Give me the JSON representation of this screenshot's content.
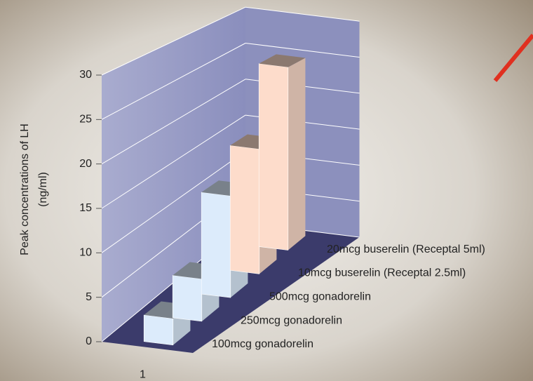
{
  "chart_data": {
    "type": "bar3d",
    "y_label": [
      "Peak concentrations of LH",
      "(ng/ml)"
    ],
    "categories": [
      "1"
    ],
    "series": [
      {
        "name": "100mcg gonadorelin",
        "color": "#dcebfb",
        "values": [
          3
        ]
      },
      {
        "name": "250mcg gonadorelin",
        "color": "#dcebfb",
        "values": [
          5
        ]
      },
      {
        "name": "500mcg gonadorelin",
        "color": "#dcebfb",
        "values": [
          12.5
        ]
      },
      {
        "name": "10mcg buserelin (Receptal 2.5ml)",
        "color": "#fddccb",
        "values": [
          16
        ]
      },
      {
        "name": "20mcg buserelin (Receptal 5ml)",
        "color": "#fddccb",
        "values": [
          24.5
        ]
      }
    ],
    "ylim": [
      0,
      30
    ],
    "yticks": [
      0,
      5,
      10,
      15,
      20,
      25,
      30
    ],
    "grid": true
  }
}
